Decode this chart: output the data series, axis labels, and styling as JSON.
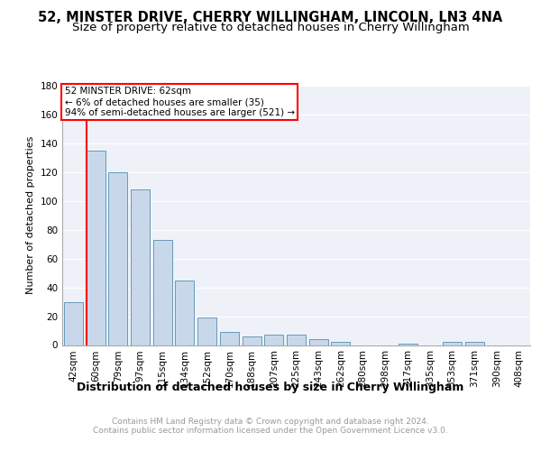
{
  "title": "52, MINSTER DRIVE, CHERRY WILLINGHAM, LINCOLN, LN3 4NA",
  "subtitle": "Size of property relative to detached houses in Cherry Willingham",
  "xlabel": "Distribution of detached houses by size in Cherry Willingham",
  "ylabel": "Number of detached properties",
  "categories": [
    "42sqm",
    "60sqm",
    "79sqm",
    "97sqm",
    "115sqm",
    "134sqm",
    "152sqm",
    "170sqm",
    "188sqm",
    "207sqm",
    "225sqm",
    "243sqm",
    "262sqm",
    "280sqm",
    "298sqm",
    "317sqm",
    "335sqm",
    "353sqm",
    "371sqm",
    "390sqm",
    "408sqm"
  ],
  "values": [
    30,
    135,
    120,
    108,
    73,
    45,
    19,
    9,
    6,
    7,
    7,
    4,
    2,
    0,
    0,
    1,
    0,
    2,
    2,
    0,
    0
  ],
  "bar_color": "#c8d8ea",
  "bar_edge_color": "#6699bb",
  "ylim": [
    0,
    180
  ],
  "yticks": [
    0,
    20,
    40,
    60,
    80,
    100,
    120,
    140,
    160,
    180
  ],
  "annotation_text": "52 MINSTER DRIVE: 62sqm\n← 6% of detached houses are smaller (35)\n94% of semi-detached houses are larger (521) →",
  "footer": "Contains HM Land Registry data © Crown copyright and database right 2024.\nContains public sector information licensed under the Open Government Licence v3.0.",
  "plot_bg_color": "#eef2f8",
  "grid_color": "#ffffff",
  "title_fontsize": 10.5,
  "subtitle_fontsize": 9.5,
  "xlabel_fontsize": 9,
  "ylabel_fontsize": 8,
  "tick_fontsize": 7.5,
  "annotation_fontsize": 7.5,
  "footer_fontsize": 6.5,
  "footer_color": "#999999"
}
